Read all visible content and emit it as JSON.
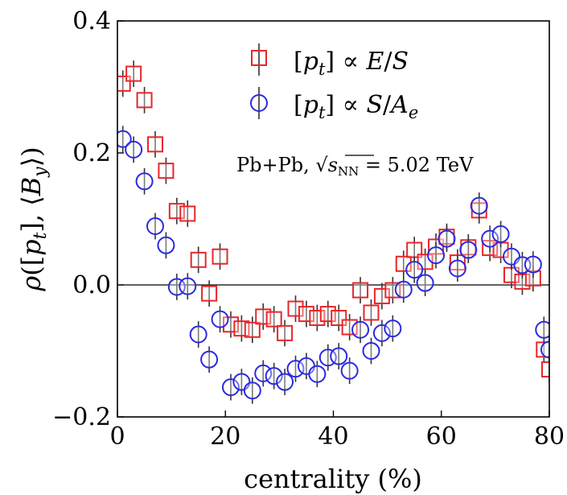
{
  "chart_data": {
    "type": "scatter",
    "xlabel": "centrality (%)",
    "ylabel": "ρ([p_t], ⟨B_y⟩)",
    "xlim": [
      0,
      80
    ],
    "ylim": [
      -0.2,
      0.4
    ],
    "xticks": [
      "0",
      "20",
      "40",
      "60",
      "80"
    ],
    "yticks": [
      "−0.2",
      "0.0",
      "0.2",
      "0.4"
    ],
    "x_tick_values": [
      0,
      20,
      40,
      60,
      80
    ],
    "y_tick_values": [
      -0.2,
      0.0,
      0.2,
      0.4
    ],
    "reference_line": 0.0,
    "annotation": "Pb+Pb, √s_NN = 5.02 TeV",
    "annotation_parts": {
      "prefix": "Pb+Pb, ",
      "sqrt": "√",
      "s": "s",
      "sub": "NN",
      "suffix": " = 5.02 TeV"
    },
    "legend_position": "upper-center",
    "series": [
      {
        "name": "[p_t] ∝ E/S",
        "legend_label": {
          "open": "[",
          "p": "p",
          "sub": "t",
          "close": "] ∝ ",
          "a": "E",
          "slash": "/",
          "b": "S",
          "bsub": ""
        },
        "marker": "square",
        "color": "#e8262a",
        "x": [
          1,
          3,
          5,
          7,
          9,
          11,
          13,
          15,
          17,
          19,
          21,
          23,
          25,
          27,
          29,
          31,
          33,
          35,
          37,
          39,
          41,
          43,
          45,
          47,
          49,
          51,
          53,
          55,
          57,
          59,
          61,
          63,
          65,
          67,
          69,
          71,
          73,
          75,
          77,
          79,
          80
        ],
        "y": [
          0.305,
          0.32,
          0.28,
          0.213,
          0.173,
          0.112,
          0.108,
          0.038,
          -0.013,
          0.043,
          -0.06,
          -0.066,
          -0.068,
          -0.048,
          -0.052,
          -0.073,
          -0.036,
          -0.044,
          -0.05,
          -0.044,
          -0.05,
          -0.064,
          -0.008,
          -0.042,
          -0.017,
          -0.008,
          0.032,
          0.053,
          0.035,
          0.058,
          0.073,
          0.034,
          0.057,
          0.113,
          0.056,
          0.053,
          0.015,
          0.005,
          0.01,
          -0.098,
          -0.128
        ],
        "err": [
          0.02,
          0.02,
          0.02,
          0.02,
          0.02,
          0.02,
          0.02,
          0.02,
          0.02,
          0.02,
          0.02,
          0.02,
          0.02,
          0.02,
          0.02,
          0.02,
          0.02,
          0.02,
          0.02,
          0.02,
          0.02,
          0.02,
          0.02,
          0.02,
          0.02,
          0.02,
          0.02,
          0.02,
          0.02,
          0.02,
          0.02,
          0.02,
          0.02,
          0.02,
          0.02,
          0.02,
          0.02,
          0.02,
          0.02,
          0.02,
          0.02
        ]
      },
      {
        "name": "[p_t] ∝ S/A_e",
        "legend_label": {
          "open": "[",
          "p": "p",
          "sub": "t",
          "close": "] ∝ ",
          "a": "S",
          "slash": "/",
          "b": "A",
          "bsub": "e"
        },
        "marker": "circle",
        "color": "#2a2ae0",
        "x": [
          1,
          3,
          5,
          7,
          9,
          11,
          13,
          15,
          17,
          19,
          21,
          23,
          25,
          27,
          29,
          31,
          33,
          35,
          37,
          39,
          41,
          43,
          45,
          47,
          49,
          51,
          53,
          55,
          57,
          59,
          61,
          63,
          65,
          67,
          69,
          71,
          73,
          75,
          77,
          79,
          80
        ],
        "y": [
          0.221,
          0.205,
          0.157,
          0.089,
          0.06,
          -0.003,
          -0.002,
          -0.075,
          -0.113,
          -0.052,
          -0.155,
          -0.147,
          -0.16,
          -0.134,
          -0.138,
          -0.147,
          -0.127,
          -0.123,
          -0.135,
          -0.11,
          -0.108,
          -0.13,
          -0.068,
          -0.1,
          -0.073,
          -0.066,
          -0.007,
          0.023,
          0.003,
          0.045,
          0.07,
          0.025,
          0.053,
          0.12,
          0.07,
          0.077,
          0.043,
          0.03,
          0.031,
          -0.068,
          -0.098
        ],
        "err": [
          0.02,
          0.02,
          0.02,
          0.02,
          0.02,
          0.02,
          0.02,
          0.02,
          0.02,
          0.02,
          0.02,
          0.02,
          0.02,
          0.02,
          0.02,
          0.02,
          0.02,
          0.02,
          0.02,
          0.02,
          0.02,
          0.02,
          0.02,
          0.02,
          0.02,
          0.02,
          0.02,
          0.02,
          0.02,
          0.02,
          0.02,
          0.02,
          0.02,
          0.02,
          0.02,
          0.02,
          0.02,
          0.02,
          0.02,
          0.02,
          0.02
        ]
      }
    ]
  }
}
